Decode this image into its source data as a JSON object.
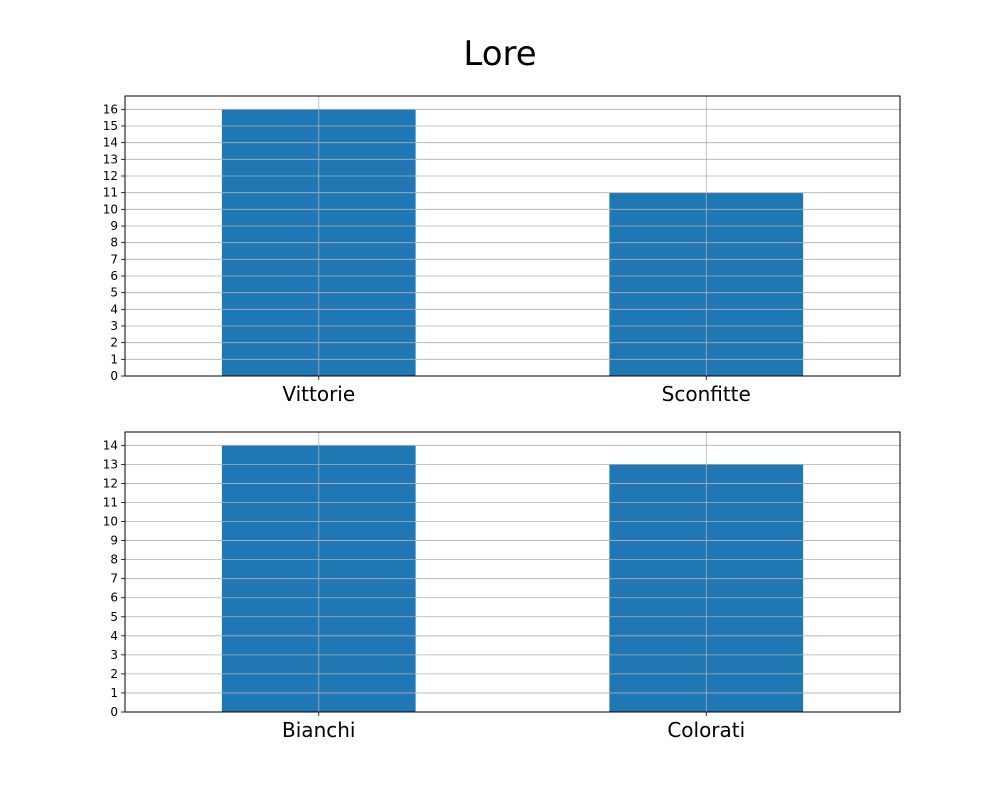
{
  "title": "Lore",
  "colors": {
    "bar": "#1f77b4",
    "grid": "#b0b0b0",
    "axis": "#000000"
  },
  "chart_data": [
    {
      "type": "bar",
      "categories": [
        "Vittorie",
        "Sconfitte"
      ],
      "values": [
        16,
        11
      ],
      "ylim": [
        0,
        16.8
      ],
      "yticks": [
        0,
        1,
        2,
        3,
        4,
        5,
        6,
        7,
        8,
        9,
        10,
        11,
        12,
        13,
        14,
        15,
        16
      ],
      "grid": true
    },
    {
      "type": "bar",
      "categories": [
        "Bianchi",
        "Colorati"
      ],
      "values": [
        14,
        13
      ],
      "ylim": [
        0,
        14.7
      ],
      "yticks": [
        0,
        1,
        2,
        3,
        4,
        5,
        6,
        7,
        8,
        9,
        10,
        11,
        12,
        13,
        14
      ],
      "grid": true
    }
  ]
}
